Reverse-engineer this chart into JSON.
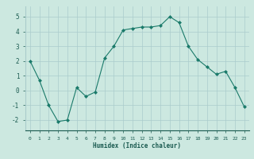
{
  "x": [
    0,
    1,
    2,
    3,
    4,
    5,
    6,
    7,
    8,
    9,
    10,
    11,
    12,
    13,
    14,
    15,
    16,
    17,
    18,
    19,
    20,
    21,
    22,
    23
  ],
  "y": [
    2.0,
    0.7,
    -1.0,
    -2.1,
    -2.0,
    0.2,
    -0.4,
    -0.1,
    2.2,
    3.0,
    4.1,
    4.2,
    4.3,
    4.3,
    4.4,
    5.0,
    4.6,
    3.0,
    2.1,
    1.6,
    1.1,
    1.3,
    0.2,
    -1.1
  ],
  "xlabel": "Humidex (Indice chaleur)",
  "ylim": [
    -2.7,
    5.7
  ],
  "xlim": [
    -0.5,
    23.5
  ],
  "line_color": "#1a7a6a",
  "marker_color": "#1a7a6a",
  "bg_color": "#cce8e0",
  "grid_color": "#aacccc",
  "tick_label_color": "#1a5a50",
  "label_color": "#1a5a50",
  "yticks": [
    -2,
    -1,
    0,
    1,
    2,
    3,
    4,
    5
  ],
  "xticks": [
    0,
    1,
    2,
    3,
    4,
    5,
    6,
    7,
    8,
    9,
    10,
    11,
    12,
    13,
    14,
    15,
    16,
    17,
    18,
    19,
    20,
    21,
    22,
    23
  ]
}
